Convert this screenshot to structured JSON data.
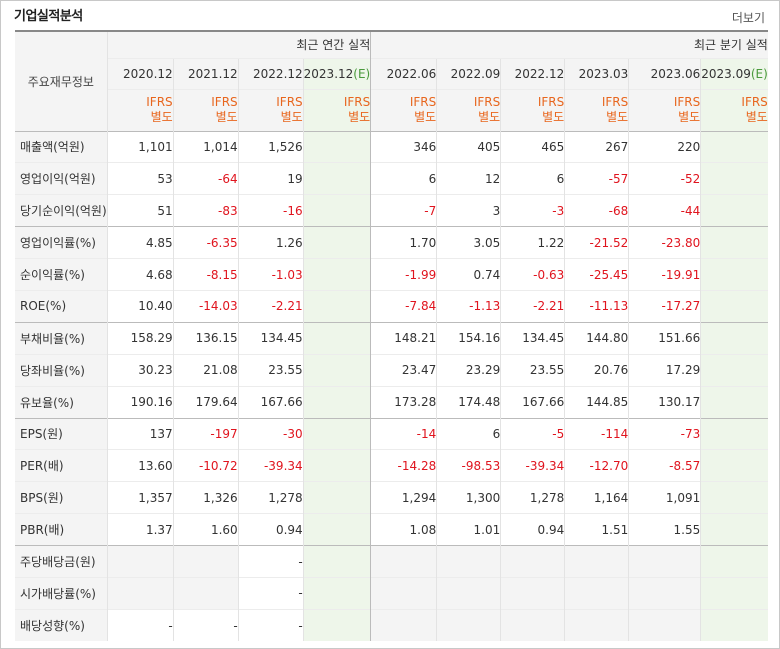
{
  "header": {
    "title": "기업실적분석",
    "more_label": "더보기"
  },
  "table": {
    "corner_label": "주요재무정보",
    "annual_label": "최근 연간 실적",
    "quarter_label": "최근 분기 실적",
    "annual_dates": [
      "2020.12",
      "2021.12",
      "2022.12",
      "2023.12"
    ],
    "quarter_dates": [
      "2022.06",
      "2022.09",
      "2022.12",
      "2023.03",
      "2023.06",
      "2023.09"
    ],
    "est_suffix": "(E)",
    "ifrs_top": "IFRS",
    "ifrs_bottom": "별도",
    "rows": [
      {
        "label": "매출액(억원)",
        "values": [
          "1,101",
          "1,014",
          "1,526",
          "",
          "346",
          "405",
          "465",
          "267",
          "220",
          ""
        ]
      },
      {
        "label": "영업이익(억원)",
        "values": [
          "53",
          "-64",
          "19",
          "",
          "6",
          "12",
          "6",
          "-57",
          "-52",
          ""
        ]
      },
      {
        "label": "당기순이익(억원)",
        "values": [
          "51",
          "-83",
          "-16",
          "",
          "-7",
          "3",
          "-3",
          "-68",
          "-44",
          ""
        ]
      },
      {
        "label": "영업이익률(%)",
        "values": [
          "4.85",
          "-6.35",
          "1.26",
          "",
          "1.70",
          "3.05",
          "1.22",
          "-21.52",
          "-23.80",
          ""
        ]
      },
      {
        "label": "순이익률(%)",
        "values": [
          "4.68",
          "-8.15",
          "-1.03",
          "",
          "-1.99",
          "0.74",
          "-0.63",
          "-25.45",
          "-19.91",
          ""
        ]
      },
      {
        "label": "ROE(%)",
        "values": [
          "10.40",
          "-14.03",
          "-2.21",
          "",
          "-7.84",
          "-1.13",
          "-2.21",
          "-11.13",
          "-17.27",
          ""
        ]
      },
      {
        "label": "부채비율(%)",
        "values": [
          "158.29",
          "136.15",
          "134.45",
          "",
          "148.21",
          "154.16",
          "134.45",
          "144.80",
          "151.66",
          ""
        ]
      },
      {
        "label": "당좌비율(%)",
        "values": [
          "30.23",
          "21.08",
          "23.55",
          "",
          "23.47",
          "23.29",
          "23.55",
          "20.76",
          "17.29",
          ""
        ]
      },
      {
        "label": "유보율(%)",
        "values": [
          "190.16",
          "179.64",
          "167.66",
          "",
          "173.28",
          "174.48",
          "167.66",
          "144.85",
          "130.17",
          ""
        ]
      },
      {
        "label": "EPS(원)",
        "values": [
          "137",
          "-197",
          "-30",
          "",
          "-14",
          "6",
          "-5",
          "-114",
          "-73",
          ""
        ]
      },
      {
        "label": "PER(배)",
        "values": [
          "13.60",
          "-10.72",
          "-39.34",
          "",
          "-14.28",
          "-98.53",
          "-39.34",
          "-12.70",
          "-8.57",
          ""
        ]
      },
      {
        "label": "BPS(원)",
        "values": [
          "1,357",
          "1,326",
          "1,278",
          "",
          "1,294",
          "1,300",
          "1,278",
          "1,164",
          "1,091",
          ""
        ]
      },
      {
        "label": "PBR(배)",
        "values": [
          "1.37",
          "1.60",
          "0.94",
          "",
          "1.08",
          "1.01",
          "0.94",
          "1.51",
          "1.55",
          ""
        ]
      },
      {
        "label": "주당배당금(원)",
        "values": [
          "",
          "",
          "-",
          "",
          "",
          "",
          "",
          "",
          "",
          ""
        ]
      },
      {
        "label": "시가배당률(%)",
        "values": [
          "",
          "",
          "-",
          "",
          "",
          "",
          "",
          "",
          "",
          ""
        ]
      },
      {
        "label": "배당성향(%)",
        "values": [
          "-",
          "-",
          "-",
          "",
          "",
          "",
          "",
          "",
          "",
          ""
        ]
      }
    ]
  },
  "colors": {
    "negative": "#e0141e",
    "ifrs": "#e8661e",
    "estimate_bg": "#eef6ea",
    "estimate_mark": "#4a9a3c"
  }
}
